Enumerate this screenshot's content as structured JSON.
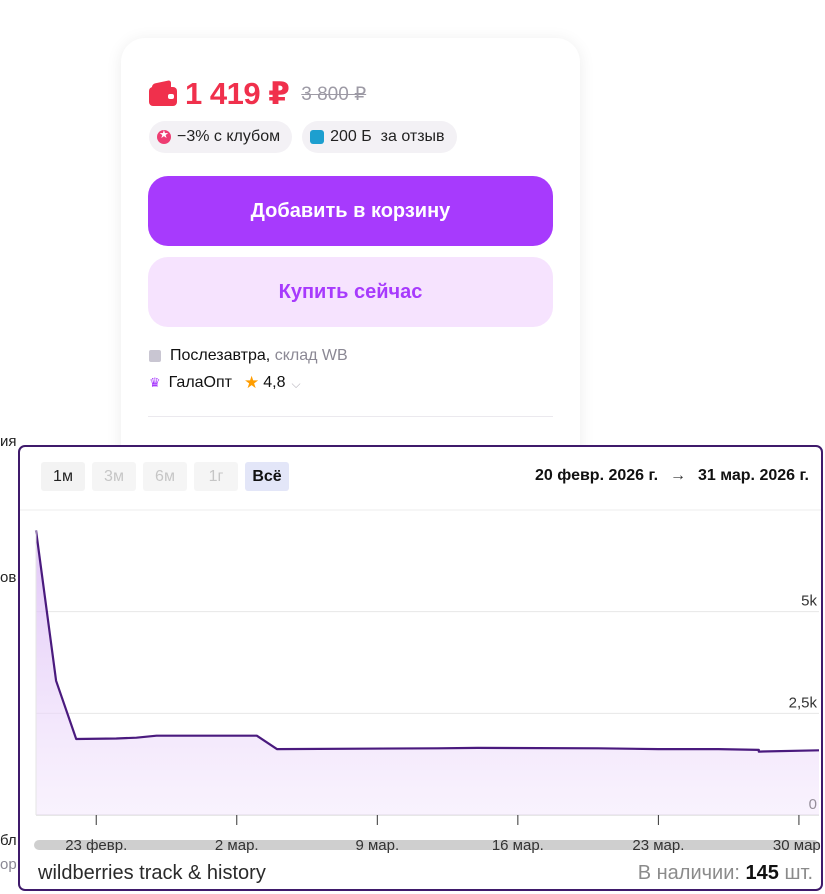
{
  "product": {
    "price_current": "1 419 ₽",
    "price_old": "3 800 ₽",
    "badges": [
      {
        "icon": "club-star-icon",
        "text": "−3% с клубом"
      },
      {
        "icon": "wallet-bonus-icon",
        "text": "200 Б  за отзыв"
      }
    ],
    "add_to_cart": "Добавить в корзину",
    "buy_now": "Купить сейчас",
    "delivery_when": "Послезавтра,",
    "delivery_where": "склад WB",
    "seller_name": "ГалаОпт",
    "seller_rating": "4,8",
    "colors": {
      "price": "#f0304c",
      "primary": "#a73afd",
      "secondary_bg": "#f6e3fe"
    }
  },
  "left_fragments": [
    "ия",
    "ов",
    "",
    "бл",
    "ор"
  ],
  "history_widget": {
    "ranges": [
      {
        "label": "1м",
        "state": "normal"
      },
      {
        "label": "3м",
        "state": "disabled"
      },
      {
        "label": "6м",
        "state": "disabled"
      },
      {
        "label": "1г",
        "state": "disabled"
      },
      {
        "label": "Всё",
        "state": "active"
      }
    ],
    "date_from": "20 февр. 2026 г.",
    "arrow": "→",
    "date_to": "31 мар. 2026 г.",
    "footer_title": "wildberries track & history",
    "stock_label": "В наличии:",
    "stock_value": "145",
    "stock_unit": "шт.",
    "line_color": "#4a1a7e"
  },
  "chart_data": {
    "type": "area",
    "x_tick_labels": [
      "23 февр.",
      "2 мар.",
      "9 мар.",
      "16 мар.",
      "23 мар.",
      "30 мар."
    ],
    "y_tick_labels": [
      "0",
      "2,5k",
      "5k"
    ],
    "ylim": [
      0,
      7500
    ],
    "xlim": [
      "2026-02-20",
      "2026-03-31"
    ],
    "series": [
      {
        "x": [
          "2026-02-20",
          "2026-02-21",
          "2026-02-22",
          "2026-02-24",
          "2026-02-25",
          "2026-02-26",
          "2026-03-01",
          "2026-03-03",
          "2026-03-04",
          "2026-03-12",
          "2026-03-14",
          "2026-03-20",
          "2026-03-23",
          "2026-03-26",
          "2026-03-28",
          "2026-03-28",
          "2026-03-31"
        ],
        "values": [
          7000,
          3300,
          1870,
          1880,
          1900,
          1950,
          1950,
          1950,
          1620,
          1640,
          1650,
          1640,
          1620,
          1620,
          1600,
          1560,
          1590
        ]
      }
    ]
  }
}
